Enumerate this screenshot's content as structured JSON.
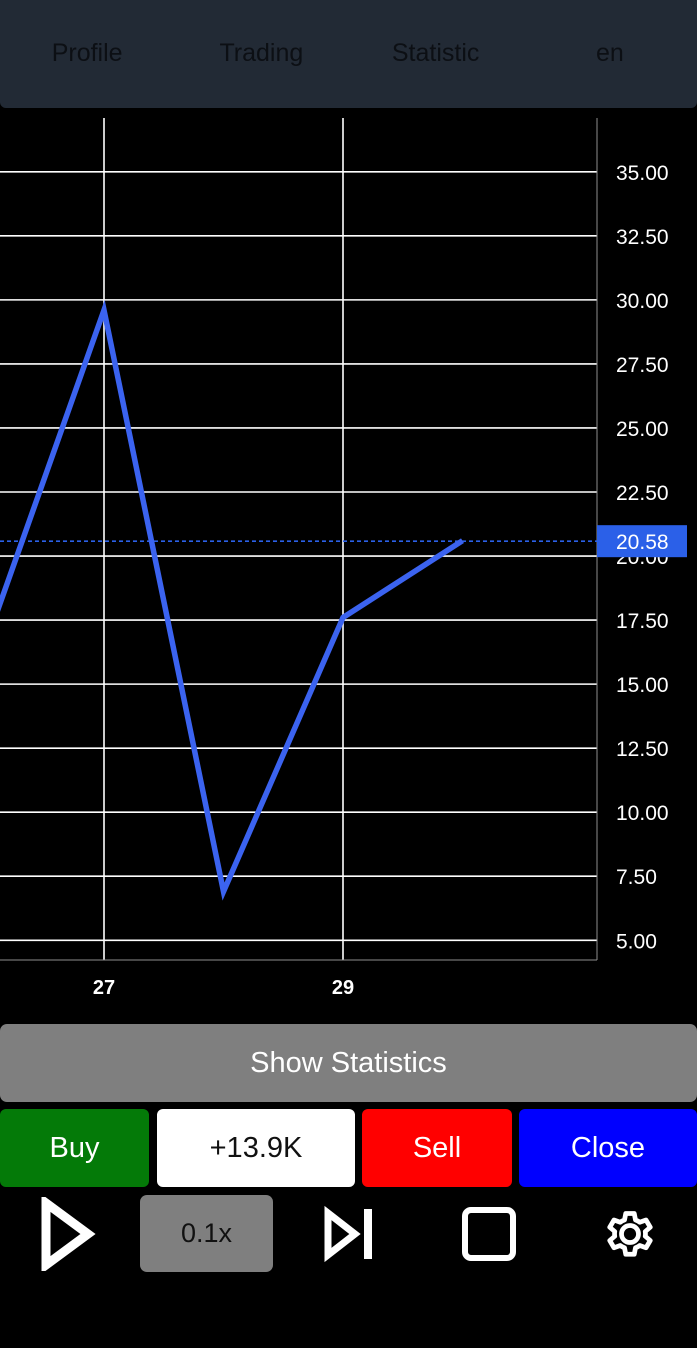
{
  "nav": {
    "items": [
      {
        "label": "Profile"
      },
      {
        "label": "Trading"
      },
      {
        "label": "Statistic"
      },
      {
        "label": "en"
      }
    ]
  },
  "chart_data": {
    "type": "line",
    "x_ticks": [
      "27",
      "29"
    ],
    "y_ticks": [
      "35.00",
      "32.50",
      "30.00",
      "27.50",
      "25.00",
      "22.50",
      "20.00",
      "17.50",
      "15.00",
      "12.50",
      "10.00",
      "7.50",
      "5.00"
    ],
    "series": [
      {
        "values": [
          {
            "x": 25.8,
            "y": 13.8
          },
          {
            "x": 27,
            "y": 29.6
          },
          {
            "x": 28,
            "y": 6.9
          },
          {
            "x": 29,
            "y": 17.6
          },
          {
            "x": 30,
            "y": 20.6
          }
        ]
      }
    ],
    "current_price": "20.58",
    "current_value": 20.58,
    "ylim": [
      3.5,
      36.1
    ],
    "xlim": [
      26.13,
      30.58
    ],
    "grid": true,
    "colors": {
      "line": "#3b63f0",
      "grid": "#ffffff",
      "price_tag": "#2b60e8",
      "axis_text": "#ffffff"
    }
  },
  "actions": {
    "show_statistics": "Show Statistics",
    "buy": "Buy",
    "amount": "+13.9K",
    "sell": "Sell",
    "close": "Close"
  },
  "controls": {
    "speed": "0.1x",
    "play_icon": "play-icon",
    "step_icon": "step-forward-icon",
    "stop_icon": "stop-icon",
    "settings_icon": "gear-icon"
  },
  "colors": {
    "nav_bg": "#222a35",
    "buy": "#047a08",
    "sell": "#ff0000",
    "close": "#0000ff",
    "neutral": "#7f7f7f"
  }
}
